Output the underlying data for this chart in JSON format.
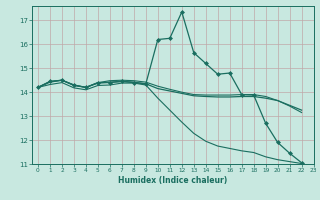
{
  "title": "",
  "xlabel": "Humidex (Indice chaleur)",
  "ylabel": "",
  "bg_color": "#c8e8e0",
  "line_color": "#1a6e60",
  "grid_color_major": "#a0c8c0",
  "grid_color_minor": "#b8d8d0",
  "xlim": [
    -0.5,
    23
  ],
  "ylim": [
    11,
    17.6
  ],
  "yticks": [
    11,
    12,
    13,
    14,
    15,
    16,
    17
  ],
  "xticks": [
    0,
    1,
    2,
    3,
    4,
    5,
    6,
    7,
    8,
    9,
    10,
    11,
    12,
    13,
    14,
    15,
    16,
    17,
    18,
    19,
    20,
    21,
    22,
    23
  ],
  "series": [
    {
      "x": [
        0,
        1,
        2,
        3,
        4,
        5,
        6,
        7,
        8,
        9,
        10,
        11,
        12,
        13,
        14,
        15,
        16,
        17,
        18,
        19,
        20,
        21,
        22
      ],
      "y": [
        14.2,
        14.45,
        14.5,
        14.3,
        14.2,
        14.4,
        14.4,
        14.45,
        14.4,
        14.35,
        16.2,
        16.25,
        17.35,
        15.65,
        15.2,
        14.75,
        14.8,
        13.9,
        13.88,
        12.7,
        11.9,
        11.45,
        11.05
      ],
      "marker": "D",
      "markersize": 2.0,
      "linewidth": 0.9
    },
    {
      "x": [
        0,
        1,
        2,
        3,
        4,
        5,
        6,
        7,
        8,
        9,
        10,
        11,
        12,
        13,
        14,
        15,
        16,
        17,
        18,
        19,
        20,
        21,
        22
      ],
      "y": [
        14.2,
        14.42,
        14.5,
        14.28,
        14.2,
        14.38,
        14.42,
        14.45,
        14.42,
        14.35,
        14.15,
        14.05,
        13.95,
        13.85,
        13.82,
        13.8,
        13.8,
        13.82,
        13.82,
        13.75,
        13.65,
        13.45,
        13.25
      ],
      "marker": null,
      "markersize": 0,
      "linewidth": 0.9
    },
    {
      "x": [
        0,
        1,
        2,
        3,
        4,
        5,
        6,
        7,
        8,
        9,
        10,
        11,
        12,
        13,
        14,
        15,
        16,
        17,
        18,
        19,
        20,
        21,
        22
      ],
      "y": [
        14.2,
        14.45,
        14.5,
        14.3,
        14.2,
        14.4,
        14.48,
        14.5,
        14.48,
        14.42,
        14.25,
        14.12,
        14.0,
        13.9,
        13.88,
        13.88,
        13.88,
        13.9,
        13.9,
        13.82,
        13.65,
        13.42,
        13.15
      ],
      "marker": null,
      "markersize": 0,
      "linewidth": 0.8
    },
    {
      "x": [
        0,
        1,
        2,
        3,
        4,
        5,
        6,
        7,
        8,
        9,
        10,
        11,
        12,
        13,
        14,
        15,
        16,
        17,
        18,
        19,
        20,
        21,
        22
      ],
      "y": [
        14.2,
        14.32,
        14.4,
        14.18,
        14.1,
        14.28,
        14.3,
        14.38,
        14.38,
        14.3,
        13.75,
        13.25,
        12.75,
        12.28,
        11.95,
        11.75,
        11.65,
        11.55,
        11.48,
        11.3,
        11.18,
        11.1,
        11.02
      ],
      "marker": null,
      "markersize": 0,
      "linewidth": 0.8
    }
  ]
}
